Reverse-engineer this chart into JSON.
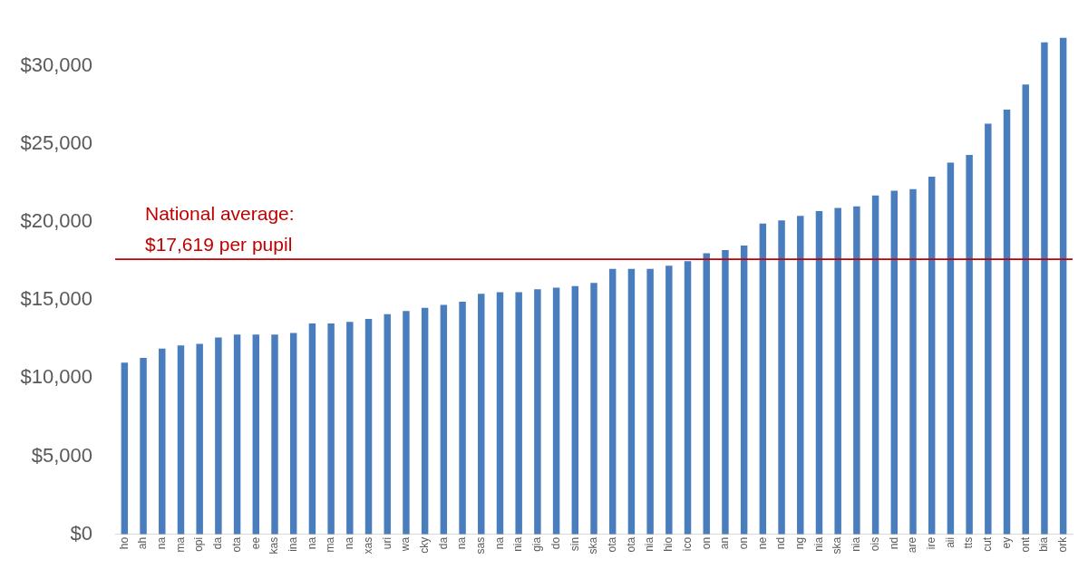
{
  "chart_data": {
    "type": "bar",
    "categories": [
      "ho",
      "ah",
      "na",
      "ma",
      "opi",
      "da",
      "ota",
      "ee",
      "kas",
      "ina",
      "na",
      "ma",
      "na",
      "xas",
      "uri",
      "wa",
      "cky",
      "da",
      "na",
      "sas",
      "na",
      "nia",
      "gia",
      "do",
      "sin",
      "ska",
      "ota",
      "ota",
      "nia",
      "hio",
      "ico",
      "on",
      "an",
      "on",
      "ne",
      "nd",
      "ng",
      "nia",
      "ska",
      "nia",
      "ois",
      "nd",
      "are",
      "ire",
      "aii",
      "tts",
      "cut",
      "ey",
      "ont",
      "bia",
      "ork"
    ],
    "values": [
      11000,
      11300,
      11900,
      12100,
      12200,
      12600,
      12800,
      12800,
      12800,
      12900,
      13500,
      13500,
      13600,
      13800,
      14100,
      14300,
      14500,
      14700,
      14900,
      15400,
      15500,
      15500,
      15700,
      15800,
      15900,
      16100,
      17000,
      17000,
      17000,
      17200,
      17500,
      18000,
      18200,
      18500,
      19900,
      20100,
      20400,
      20700,
      20900,
      21000,
      21700,
      22000,
      22100,
      22900,
      23800,
      24300,
      26300,
      27200,
      28800,
      31500,
      31800
    ],
    "color": "#4a7dbd",
    "ylim": [
      0,
      32000
    ],
    "yticks": [
      {
        "value": 0,
        "label": "$0"
      },
      {
        "value": 5000,
        "label": "$5,000"
      },
      {
        "value": 10000,
        "label": "$10,000"
      },
      {
        "value": 15000,
        "label": "$15,000"
      },
      {
        "value": 20000,
        "label": "$20,000"
      },
      {
        "value": 25000,
        "label": "$25,000"
      },
      {
        "value": 30000,
        "label": "$30,000"
      }
    ],
    "grid": false,
    "legend": false,
    "ref_lines": [
      {
        "axis": "y",
        "value": 17619,
        "label": "National average: $17,619 per pupil",
        "color": "#c00000",
        "line_style": "solid"
      }
    ]
  }
}
